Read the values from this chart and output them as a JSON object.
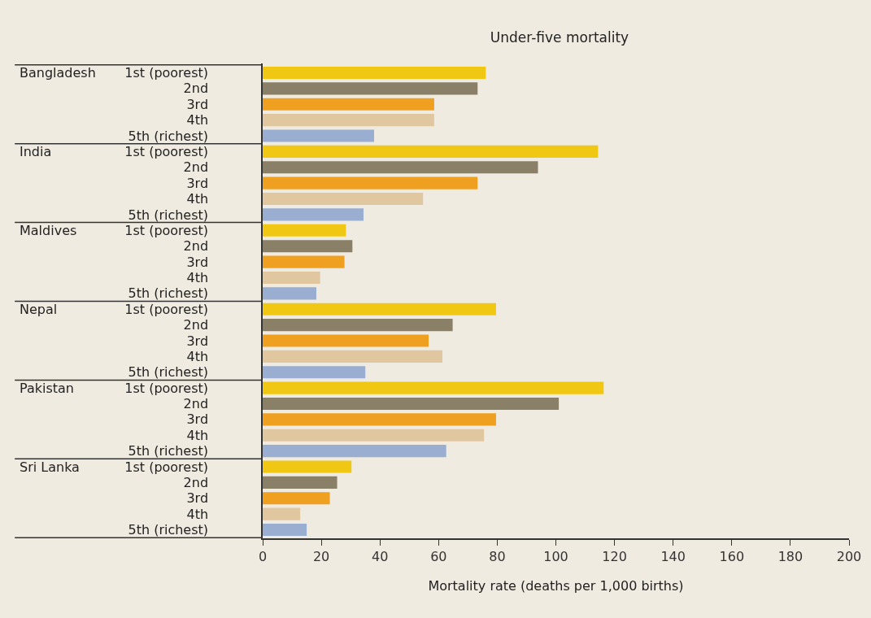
{
  "chart_data": {
    "type": "bar",
    "orientation": "horizontal",
    "title": "Under-five mortality",
    "xlabel": "Mortality rate (deaths per 1,000 births)",
    "categories": [
      "1st (poorest)",
      "2nd",
      "3rd",
      "4th",
      "5th (richest)",
      "1st (poorest)",
      "2nd",
      "3rd",
      "4th",
      "5th (richest)",
      "1st (poorest)",
      "2nd",
      "3rd",
      "4th",
      "5th (richest)",
      "1st (poorest)",
      "2nd",
      "3rd",
      "4th",
      "5th (richest)",
      "1st (poorest)",
      "2nd",
      "3rd",
      "4th",
      "5th (richest)",
      "1st (poorest)",
      "2nd",
      "3rd",
      "4th",
      "5th (richest)"
    ],
    "values": [
      76.1,
      73.3,
      58.5,
      58.5,
      38.0,
      114.4,
      93.9,
      73.3,
      54.7,
      34.4,
      28.4,
      30.6,
      27.9,
      19.6,
      18.3,
      79.6,
      64.8,
      56.6,
      61.3,
      35.0,
      116.3,
      101.0,
      79.6,
      75.5,
      62.6,
      30.3,
      25.4,
      22.9,
      12.8,
      15.0
    ],
    "colors": [
      "#f0c814",
      "#8a8068",
      "#efa020",
      "#e0c7a0",
      "#99aed0",
      "#f0c814",
      "#8a8068",
      "#efa020",
      "#e0c7a0",
      "#99aed0",
      "#f0c814",
      "#8a8068",
      "#efa020",
      "#e0c7a0",
      "#99aed0",
      "#f0c814",
      "#8a8068",
      "#efa020",
      "#e0c7a0",
      "#99aed0",
      "#f0c814",
      "#8a8068",
      "#efa020",
      "#e0c7a0",
      "#99aed0",
      "#f0c814",
      "#8a8068",
      "#efa020",
      "#e0c7a0",
      "#99aed0"
    ],
    "annotations": [
      "Bangladesh",
      "India",
      "Maldives",
      "Nepal",
      "Pakistan",
      "Sri Lanka"
    ],
    "xlim": [
      0,
      200
    ],
    "xticks": [
      0,
      20,
      40,
      60,
      80,
      100,
      120,
      140,
      160,
      180,
      200
    ],
    "grid": false
  }
}
